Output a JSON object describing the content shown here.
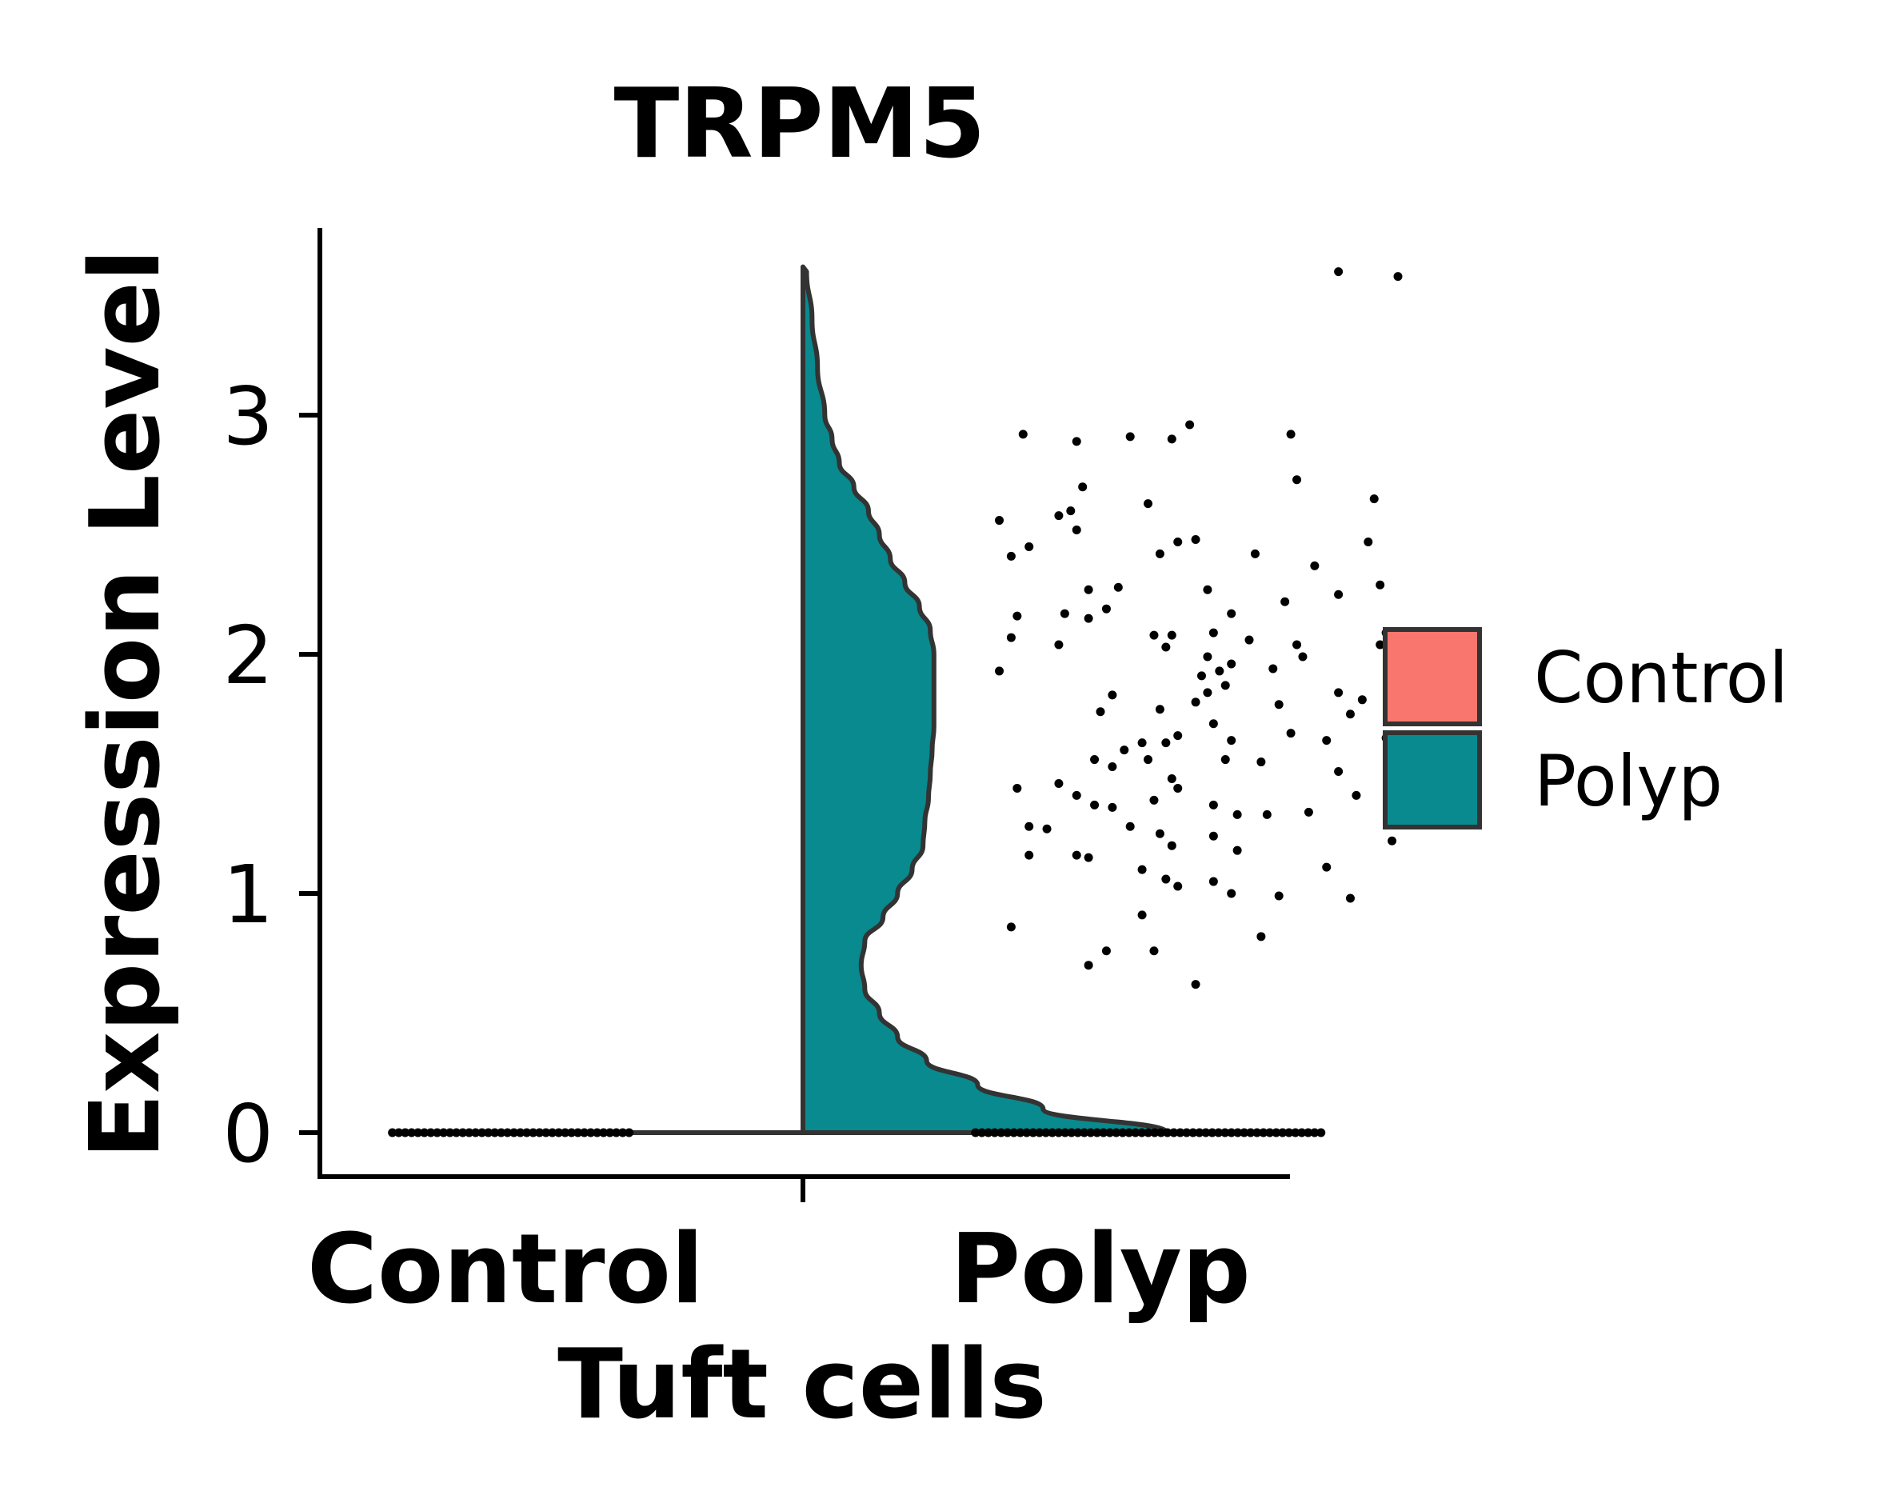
{
  "chart_data": {
    "type": "violin",
    "title": "TRPM5",
    "xlabel": "Tuft cells",
    "ylabel": "Expression Level",
    "categories": [
      "Control",
      "Polyp"
    ],
    "yticks": [
      "0",
      "1",
      "2",
      "3"
    ],
    "ylim": [
      -0.18,
      3.78
    ],
    "grid": false,
    "legend": {
      "placement": "right",
      "items": [
        {
          "label": "Control",
          "color": "#F8766D"
        },
        {
          "label": "Polyp",
          "color": "#088A8F"
        }
      ]
    },
    "series": [
      {
        "name": "Control",
        "color": "#F8766D",
        "density": [
          [
            0.0,
            1.0
          ]
        ],
        "points": []
      },
      {
        "name": "Polyp",
        "color": "#088A8F",
        "density": [
          [
            0.0,
            1.0
          ],
          [
            0.1,
            0.66
          ],
          [
            0.2,
            0.48
          ],
          [
            0.3,
            0.34
          ],
          [
            0.4,
            0.26
          ],
          [
            0.5,
            0.21
          ],
          [
            0.6,
            0.17
          ],
          [
            0.7,
            0.16
          ],
          [
            0.8,
            0.17
          ],
          [
            0.9,
            0.22
          ],
          [
            1.0,
            0.26
          ],
          [
            1.1,
            0.3
          ],
          [
            1.2,
            0.33
          ],
          [
            1.3,
            0.335
          ],
          [
            1.4,
            0.345
          ],
          [
            1.5,
            0.35
          ],
          [
            1.6,
            0.355
          ],
          [
            1.7,
            0.36
          ],
          [
            1.8,
            0.36
          ],
          [
            1.9,
            0.36
          ],
          [
            2.0,
            0.36
          ],
          [
            2.1,
            0.35
          ],
          [
            2.2,
            0.32
          ],
          [
            2.3,
            0.28
          ],
          [
            2.4,
            0.24
          ],
          [
            2.5,
            0.21
          ],
          [
            2.6,
            0.18
          ],
          [
            2.7,
            0.14
          ],
          [
            2.8,
            0.1
          ],
          [
            2.9,
            0.08
          ],
          [
            3.0,
            0.06
          ],
          [
            3.2,
            0.04
          ],
          [
            3.4,
            0.025
          ],
          [
            3.6,
            0.01
          ]
        ],
        "points": [
          [
            0.9,
            3.6
          ],
          [
            1.0,
            3.58
          ],
          [
            0.37,
            2.92
          ],
          [
            0.46,
            2.89
          ],
          [
            0.55,
            2.91
          ],
          [
            0.62,
            2.9
          ],
          [
            0.65,
            2.96
          ],
          [
            0.82,
            2.92
          ],
          [
            0.47,
            2.7
          ],
          [
            0.83,
            2.73
          ],
          [
            0.45,
            2.6
          ],
          [
            0.58,
            2.63
          ],
          [
            0.96,
            2.65
          ],
          [
            0.33,
            2.56
          ],
          [
            0.43,
            2.58
          ],
          [
            0.46,
            2.52
          ],
          [
            0.63,
            2.47
          ],
          [
            0.66,
            2.48
          ],
          [
            0.95,
            2.47
          ],
          [
            0.38,
            2.45
          ],
          [
            0.6,
            2.42
          ],
          [
            0.76,
            2.42
          ],
          [
            0.35,
            2.41
          ],
          [
            0.86,
            2.37
          ],
          [
            0.48,
            2.27
          ],
          [
            0.53,
            2.28
          ],
          [
            0.68,
            2.27
          ],
          [
            0.9,
            2.25
          ],
          [
            0.97,
            2.29
          ],
          [
            0.81,
            2.22
          ],
          [
            0.51,
            2.19
          ],
          [
            0.44,
            2.17
          ],
          [
            0.36,
            2.16
          ],
          [
            0.48,
            2.15
          ],
          [
            0.72,
            2.17
          ],
          [
            0.59,
            2.08
          ],
          [
            0.62,
            2.08
          ],
          [
            0.69,
            2.09
          ],
          [
            0.75,
            2.06
          ],
          [
            0.83,
            2.04
          ],
          [
            0.98,
            2.09
          ],
          [
            0.35,
            2.07
          ],
          [
            0.43,
            2.04
          ],
          [
            0.61,
            2.03
          ],
          [
            0.97,
            2.04
          ],
          [
            0.68,
            1.99
          ],
          [
            0.72,
            1.96
          ],
          [
            0.84,
            1.99
          ],
          [
            0.7,
            1.93
          ],
          [
            0.79,
            1.94
          ],
          [
            0.33,
            1.93
          ],
          [
            0.67,
            1.91
          ],
          [
            0.71,
            1.87
          ],
          [
            0.68,
            1.84
          ],
          [
            0.52,
            1.83
          ],
          [
            0.66,
            1.8
          ],
          [
            0.9,
            1.84
          ],
          [
            0.94,
            1.81
          ],
          [
            0.8,
            1.79
          ],
          [
            0.6,
            1.77
          ],
          [
            0.5,
            1.76
          ],
          [
            0.92,
            1.75
          ],
          [
            0.69,
            1.71
          ],
          [
            0.63,
            1.66
          ],
          [
            0.82,
            1.67
          ],
          [
            0.57,
            1.63
          ],
          [
            0.61,
            1.63
          ],
          [
            0.72,
            1.64
          ],
          [
            0.88,
            1.64
          ],
          [
            0.98,
            1.65
          ],
          [
            0.54,
            1.6
          ],
          [
            0.49,
            1.56
          ],
          [
            0.58,
            1.56
          ],
          [
            0.52,
            1.53
          ],
          [
            0.71,
            1.56
          ],
          [
            0.77,
            1.55
          ],
          [
            0.43,
            1.46
          ],
          [
            0.62,
            1.48
          ],
          [
            0.63,
            1.44
          ],
          [
            0.9,
            1.51
          ],
          [
            0.36,
            1.44
          ],
          [
            0.46,
            1.41
          ],
          [
            0.59,
            1.39
          ],
          [
            0.49,
            1.37
          ],
          [
            0.52,
            1.36
          ],
          [
            0.69,
            1.37
          ],
          [
            0.93,
            1.41
          ],
          [
            0.73,
            1.33
          ],
          [
            0.78,
            1.33
          ],
          [
            0.85,
            1.34
          ],
          [
            0.38,
            1.28
          ],
          [
            0.41,
            1.27
          ],
          [
            0.55,
            1.28
          ],
          [
            0.6,
            1.25
          ],
          [
            0.69,
            1.24
          ],
          [
            0.62,
            1.2
          ],
          [
            0.99,
            1.22
          ],
          [
            0.38,
            1.16
          ],
          [
            0.46,
            1.16
          ],
          [
            0.48,
            1.15
          ],
          [
            0.73,
            1.18
          ],
          [
            0.88,
            1.11
          ],
          [
            0.57,
            1.1
          ],
          [
            0.61,
            1.06
          ],
          [
            0.69,
            1.05
          ],
          [
            0.63,
            1.03
          ],
          [
            0.72,
            1.0
          ],
          [
            0.8,
            0.99
          ],
          [
            0.92,
            0.98
          ],
          [
            0.57,
            0.91
          ],
          [
            0.35,
            0.86
          ],
          [
            0.77,
            0.82
          ],
          [
            0.51,
            0.76
          ],
          [
            0.59,
            0.76
          ],
          [
            0.48,
            0.7
          ],
          [
            0.66,
            0.62
          ]
        ],
        "zero_points_range": [
          0.29,
          0.88
        ]
      }
    ],
    "control_zero_points_range": [
      -0.69,
      -0.29
    ]
  }
}
